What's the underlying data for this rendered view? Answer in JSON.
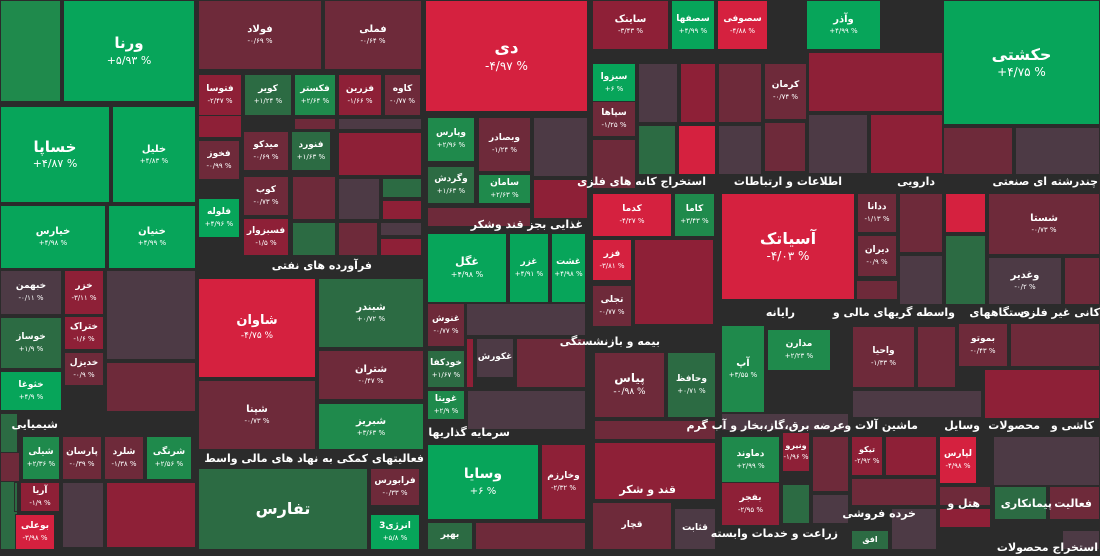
{
  "chart_data": {
    "type": "treemap",
    "title": "",
    "colors": {
      "green_strong": "#07a55a",
      "green": "#1f8a4c",
      "green_dark": "#2c6b43",
      "neutral": "#4d3a45",
      "red_dark": "#6e2a3a",
      "red": "#8e2037",
      "red_strong": "#d5213f",
      "background": "#2b2b2b"
    },
    "sectors": [
      {
        "name": "فرآورده های نفتی"
      },
      {
        "name": "غذایی بجز قند وشکر"
      },
      {
        "name": "استخراج کانه های فلزی"
      },
      {
        "name": "اطلاعات و ارتباطات"
      },
      {
        "name": "دارویی"
      },
      {
        "name": "چندرشته ای صنعتی"
      },
      {
        "name": "شیمیایی"
      },
      {
        "name": "فعالیتهای کمکی به نهاد های مالی واسط"
      },
      {
        "name": "سرمایه گذاریها"
      },
      {
        "name": "بیمه و بازنشستگی"
      },
      {
        "name": "رایانه"
      },
      {
        "name": "واسطه گریهای مالی و"
      },
      {
        "name": "دستگاههای"
      },
      {
        "name": "کانی غیر فلزی"
      },
      {
        "name": "قند و شکر"
      },
      {
        "name": "عرضه برق،گاز،بخار و آب گرم"
      },
      {
        "name": "ماشین آلات و"
      },
      {
        "name": "وسایل"
      },
      {
        "name": "محصولات"
      },
      {
        "name": "کاشی و"
      },
      {
        "name": "زراعت و خدمات وابسته"
      },
      {
        "name": "خرده فروشی"
      },
      {
        "name": "هتل و"
      },
      {
        "name": "پیمانکاری"
      },
      {
        "name": "فعالیت"
      },
      {
        "name": "استخراج محصولات"
      }
    ],
    "tiles": [
      {
        "symbol": "ورنا",
        "change": "+۵/۹۳ %",
        "value": 5.93
      },
      {
        "symbol": "فولاد",
        "change": "-۰/۶۹ %",
        "value": -0.69
      },
      {
        "symbol": "فملی",
        "change": "-۰/۶۴ %",
        "value": -0.64
      },
      {
        "symbol": "دی",
        "change": "-۴/۹۷ %",
        "value": -4.97
      },
      {
        "symbol": "ساینک",
        "change": "-۳/۴۳ %",
        "value": -3.43
      },
      {
        "symbol": "سصفها",
        "change": "+۴/۹۹ %",
        "value": 4.99
      },
      {
        "symbol": "سصوفی",
        "change": "-۴/۸۸ %",
        "value": -4.88
      },
      {
        "symbol": "وآذر",
        "change": "+۴/۹۹ %",
        "value": 4.99
      },
      {
        "symbol": "حکشتی",
        "change": "+۴/۷۵ %",
        "value": 4.75
      },
      {
        "symbol": "خساپا",
        "change": "+۴/۸۷ %",
        "value": 4.87
      },
      {
        "symbol": "خلیل",
        "change": "+۴/۸۳ %",
        "value": 4.83
      },
      {
        "symbol": "خیارس",
        "change": "+۴/۹۸ %",
        "value": 4.98
      },
      {
        "symbol": "خنیان",
        "change": "+۴/۹۹ %",
        "value": 4.99
      },
      {
        "symbol": "فتوسا",
        "change": "-۲/۴۷ %",
        "value": -2.47
      },
      {
        "symbol": "کویر",
        "change": "+۱/۲۴ %",
        "value": 1.24
      },
      {
        "symbol": "فکستر",
        "change": "+۲/۶۴ %",
        "value": 2.64
      },
      {
        "symbol": "فزرین",
        "change": "-۱/۶۶ %",
        "value": -1.66
      },
      {
        "symbol": "کاوه",
        "change": "-۰/۷۷ %",
        "value": -0.77
      },
      {
        "symbol": "میدکو",
        "change": "-۰/۶۹ %",
        "value": -0.69
      },
      {
        "symbol": "فنورد",
        "change": "+۱/۶۳ %",
        "value": 1.63
      },
      {
        "symbol": "فخوز",
        "change": "-۰/۹۹ %",
        "value": -0.99
      },
      {
        "symbol": "کوب",
        "change": "-۰/۷۳ %",
        "value": -0.73
      },
      {
        "symbol": "فسبزوار",
        "change": "-۱/۵ %",
        "value": -1.5
      },
      {
        "symbol": "فلوله",
        "change": "+۴/۹۶ %",
        "value": 4.96
      },
      {
        "symbol": "وپارس",
        "change": "+۲/۹۶ %",
        "value": 2.96
      },
      {
        "symbol": "وبصادر",
        "change": "-۱/۲۴ %",
        "value": -1.24
      },
      {
        "symbol": "وگردش",
        "change": "+۱/۶۳ %",
        "value": 1.63
      },
      {
        "symbol": "سامان",
        "change": "+۲/۶۳ %",
        "value": 2.63
      },
      {
        "symbol": "سیزوا",
        "change": "+۶ %",
        "value": 6
      },
      {
        "symbol": "سپاها",
        "change": "-۱/۲۵ %",
        "value": -1.25
      },
      {
        "symbol": "کرمان",
        "change": "-۰/۷۴ %",
        "value": -0.74
      },
      {
        "symbol": "کدما",
        "change": "-۴/۲۷ %",
        "value": -4.27
      },
      {
        "symbol": "کاما",
        "change": "+۳/۴۳ %",
        "value": 3.43
      },
      {
        "symbol": "فزر",
        "change": "-۳/۸۱ %",
        "value": -3.81
      },
      {
        "symbol": "تجلی",
        "change": "-۰/۷۷ %",
        "value": -0.77
      },
      {
        "symbol": "آسیاتک",
        "change": "-۴/۰۳ %",
        "value": -4.03
      },
      {
        "symbol": "ددانا",
        "change": "-۱/۱۳ %",
        "value": -1.13
      },
      {
        "symbol": "دیران",
        "change": "-۰/۹ %",
        "value": -0.9
      },
      {
        "symbol": "شستا",
        "change": "-۰/۷۳ %",
        "value": -0.73
      },
      {
        "symbol": "وغدیر",
        "change": "-۰/۲ %",
        "value": -0.2
      },
      {
        "symbol": "غگل",
        "change": "+۴/۹۸ %",
        "value": 4.98
      },
      {
        "symbol": "غزر",
        "change": "+۴/۹۱ %",
        "value": 4.91
      },
      {
        "symbol": "غشت",
        "change": "+۴/۹۸ %",
        "value": 4.98
      },
      {
        "symbol": "خبهمن",
        "change": "-۰/۱۱ %",
        "value": -0.11
      },
      {
        "symbol": "خزر",
        "change": "-۳/۱۱ %",
        "value": -3.11
      },
      {
        "symbol": "ختراک",
        "change": "-۱/۶ %",
        "value": -1.6
      },
      {
        "symbol": "خوساز",
        "change": "+۱/۹ %",
        "value": 1.9
      },
      {
        "symbol": "خدیزل",
        "change": "-۰/۹ %",
        "value": -0.9
      },
      {
        "symbol": "خثوغا",
        "change": "+۴/۹ %",
        "value": 4.9
      },
      {
        "symbol": "شاوان",
        "change": "-۴/۷۵ %",
        "value": -4.75
      },
      {
        "symbol": "شبندر",
        "change": "+۰/۷۲ %",
        "value": 0.72
      },
      {
        "symbol": "شتران",
        "change": "-۰/۴۷ %",
        "value": -0.47
      },
      {
        "symbol": "شپنا",
        "change": "-۰/۷۳ %",
        "value": -0.73
      },
      {
        "symbol": "شبریز",
        "change": "+۳/۶۳ %",
        "value": 3.63
      },
      {
        "symbol": "غنوش",
        "change": "-۰/۷۷ %",
        "value": -0.77
      },
      {
        "symbol": "خودکفا",
        "change": "+۱/۶۷ %",
        "value": 1.67
      },
      {
        "symbol": "غویتا",
        "change": "+۲/۹ %",
        "value": 2.9
      },
      {
        "symbol": "غکورش",
        "change": "",
        "value": null
      },
      {
        "symbol": "پیاس",
        "change": "-۰/۹۸ %",
        "value": -0.98
      },
      {
        "symbol": "وحافظ",
        "change": "+۰/۷۱ %",
        "value": 0.71
      },
      {
        "symbol": "مدارن",
        "change": "+۲/۲۳ %",
        "value": 2.23
      },
      {
        "symbol": "آپ",
        "change": "+۳/۵۵ %",
        "value": 3.55
      },
      {
        "symbol": "واحیا",
        "change": "-۱/۳۳ %",
        "value": -1.33
      },
      {
        "symbol": "بموتو",
        "change": "-۰/۴۳ %",
        "value": -0.43
      },
      {
        "symbol": "شیلی",
        "change": "+۲/۳۶ %",
        "value": 2.36
      },
      {
        "symbol": "پارسان",
        "change": "-۰/۳۹ %",
        "value": -0.39
      },
      {
        "symbol": "شلرد",
        "change": "-۱/۳۸ %",
        "value": -1.38
      },
      {
        "symbol": "شرنگی",
        "change": "+۲/۵۶ %",
        "value": 2.56
      },
      {
        "symbol": "آریا",
        "change": "-۱/۹ %",
        "value": -1.9
      },
      {
        "symbol": "بوعلی",
        "change": "-۳/۹۸ %",
        "value": -3.98
      },
      {
        "symbol": "فرابورس",
        "change": "-۰/۳۳ %",
        "value": -0.33
      },
      {
        "symbol": "تفارس",
        "change": "",
        "value": null
      },
      {
        "symbol": "انرژی3",
        "change": "+۵/۸ %",
        "value": 5.8
      },
      {
        "symbol": "وسایا",
        "change": "+۶ %",
        "value": 6
      },
      {
        "symbol": "وخارزم",
        "change": "-۲/۳۲ %",
        "value": -2.32
      },
      {
        "symbol": "بهپر",
        "change": "",
        "value": null
      },
      {
        "symbol": "قچار",
        "change": "",
        "value": null
      },
      {
        "symbol": "قثابت",
        "change": "",
        "value": null
      },
      {
        "symbol": "دماوند",
        "change": "+۲/۹۹ %",
        "value": 2.99
      },
      {
        "symbol": "ونیرو",
        "change": "-۱/۹۶ %",
        "value": -1.96
      },
      {
        "symbol": "بفجر",
        "change": "-۲/۹۵ %",
        "value": -2.95
      },
      {
        "symbol": "تیکو",
        "change": "-۲/۹۲ %",
        "value": -2.92
      },
      {
        "symbol": "لپارس",
        "change": "-۴/۹۸ %",
        "value": -4.98
      },
      {
        "symbol": "افق",
        "change": "",
        "value": null
      }
    ]
  }
}
